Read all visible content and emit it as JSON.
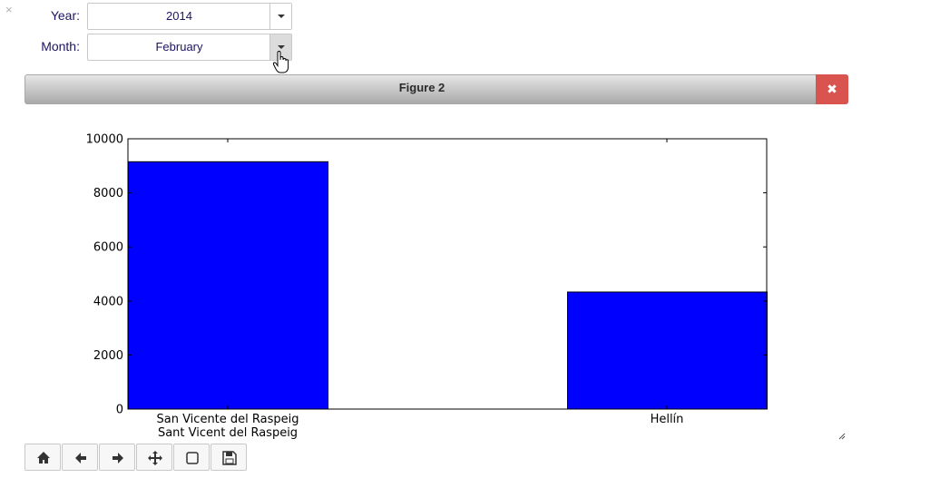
{
  "form": {
    "close_glyph": "×",
    "year": {
      "label": "Year:",
      "value": "2014"
    },
    "month": {
      "label": "Month:",
      "value": "February"
    }
  },
  "figure": {
    "title": "Figure 2",
    "close_glyph": "✖"
  },
  "toolbar": {
    "buttons": [
      "home-icon",
      "back-arrow-icon",
      "forward-arrow-icon",
      "pan-icon",
      "zoom-rect-icon",
      "save-icon"
    ]
  },
  "chart_data": {
    "type": "bar",
    "categories": [
      "San Vicente del Raspeig\nSant Vicent del Raspeig",
      "Hellín"
    ],
    "values": [
      9150,
      4330
    ],
    "ylim": [
      0,
      10000
    ],
    "yticks": [
      0,
      2000,
      4000,
      6000,
      8000,
      10000
    ],
    "title": "",
    "xlabel": "",
    "ylabel": "",
    "bar_color": "#0000ff",
    "grid": false
  }
}
